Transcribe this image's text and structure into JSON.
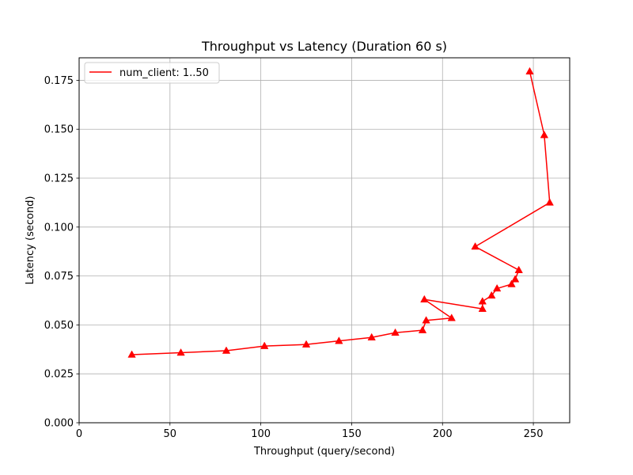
{
  "chart_data": {
    "type": "line",
    "title": "Throughput vs Latency (Duration 60 s)",
    "xlabel": "Throughput (query/second)",
    "ylabel": "Latency (second)",
    "xlim": [
      0,
      270
    ],
    "ylim": [
      0,
      0.1865
    ],
    "xticks": [
      0,
      50,
      100,
      150,
      200,
      250
    ],
    "yticks": [
      0.0,
      0.025,
      0.05,
      0.075,
      0.1,
      0.125,
      0.15,
      0.175
    ],
    "xtick_labels": [
      "0",
      "50",
      "100",
      "150",
      "200",
      "250"
    ],
    "ytick_labels": [
      "0.000",
      "0.025",
      "0.050",
      "0.075",
      "0.100",
      "0.125",
      "0.150",
      "0.175"
    ],
    "grid": true,
    "legend_position": "upper-left",
    "series": [
      {
        "name": "num_client: 1..50",
        "color": "#ff0000",
        "marker": "triangle",
        "points": [
          [
            29,
            0.0348
          ],
          [
            56,
            0.0358
          ],
          [
            81,
            0.0368
          ],
          [
            102,
            0.0392
          ],
          [
            125,
            0.04
          ],
          [
            143,
            0.0418
          ],
          [
            161,
            0.0436
          ],
          [
            174,
            0.046
          ],
          [
            189,
            0.0473
          ],
          [
            191,
            0.0523
          ],
          [
            205,
            0.0535
          ],
          [
            190,
            0.063
          ],
          [
            222,
            0.0582
          ],
          [
            222,
            0.062
          ],
          [
            227,
            0.065
          ],
          [
            230,
            0.0686
          ],
          [
            238,
            0.0708
          ],
          [
            240,
            0.0733
          ],
          [
            242,
            0.078
          ],
          [
            218,
            0.09
          ],
          [
            259,
            0.1125
          ],
          [
            256,
            0.147
          ],
          [
            248,
            0.1795
          ]
        ]
      }
    ]
  }
}
